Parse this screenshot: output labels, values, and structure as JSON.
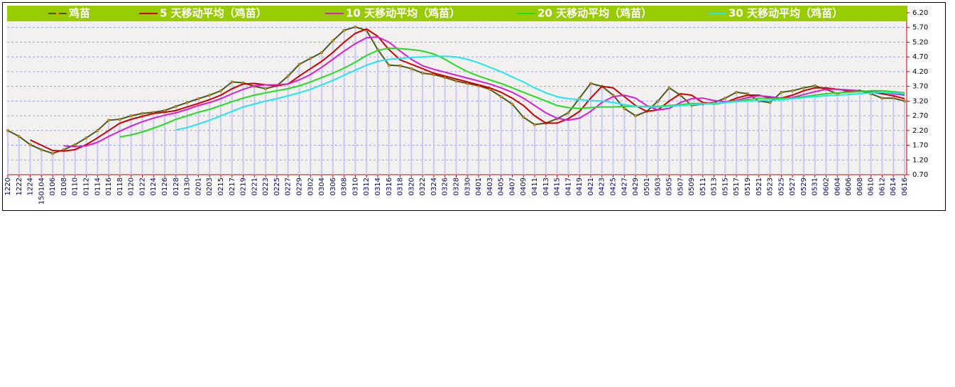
{
  "chart_data": {
    "type": "line",
    "categories": [
      "1220",
      "1222",
      "1224",
      "150104",
      "0106",
      "0108",
      "0110",
      "0112",
      "0114",
      "0116",
      "0118",
      "0120",
      "0122",
      "0124",
      "0126",
      "0128",
      "0130",
      "0201",
      "0203",
      "0215",
      "0217",
      "0219",
      "0221",
      "0223",
      "0225",
      "0227",
      "0229",
      "0302",
      "0304",
      "0306",
      "0308",
      "0310",
      "0312",
      "0314",
      "0316",
      "0318",
      "0320",
      "0322",
      "0324",
      "0326",
      "0328",
      "0330",
      "0401",
      "0403",
      "0405",
      "0407",
      "0409",
      "0411",
      "0413",
      "0415",
      "0417",
      "0419",
      "0421",
      "0423",
      "0425",
      "0427",
      "0429",
      "0501",
      "0503",
      "0505",
      "0507",
      "0509",
      "0511",
      "0513",
      "0515",
      "0517",
      "0519",
      "0521",
      "0523",
      "0525",
      "0527",
      "0529",
      "0531",
      "0602",
      "0604",
      "0606",
      "0608",
      "0610",
      "0612",
      "0614",
      "0616"
    ],
    "series": [
      {
        "name": "鸡苗",
        "color": "#4b5a1e",
        "marker_color": "#ff9900",
        "bar_color": "#c9c9f2",
        "values": [
          2.2,
          2.0,
          1.72,
          1.55,
          1.42,
          1.55,
          1.72,
          1.95,
          2.2,
          2.55,
          2.58,
          2.7,
          2.78,
          2.82,
          2.88,
          3.02,
          3.15,
          3.28,
          3.4,
          3.55,
          3.85,
          3.82,
          3.7,
          3.62,
          3.72,
          4.05,
          4.45,
          4.65,
          4.85,
          5.25,
          5.6,
          5.72,
          5.6,
          4.95,
          4.42,
          4.4,
          4.3,
          4.15,
          4.1,
          4.0,
          3.88,
          3.8,
          3.72,
          3.6,
          3.35,
          3.1,
          2.65,
          2.4,
          2.45,
          2.6,
          2.8,
          3.3,
          3.8,
          3.7,
          3.4,
          2.95,
          2.7,
          2.85,
          3.2,
          3.65,
          3.4,
          3.05,
          3.1,
          3.15,
          3.3,
          3.5,
          3.45,
          3.2,
          3.15,
          3.5,
          3.55,
          3.65,
          3.72,
          3.6,
          3.45,
          3.55,
          3.55,
          3.45,
          3.3,
          3.3,
          3.2
        ]
      },
      {
        "name": "5 天移动平均（鸡苗）",
        "color": "#cc0000",
        "values": [
          null,
          null,
          1.88,
          1.7,
          1.52,
          1.5,
          1.55,
          1.72,
          1.95,
          2.2,
          2.45,
          2.58,
          2.68,
          2.78,
          2.82,
          2.88,
          3.0,
          3.12,
          3.25,
          3.4,
          3.62,
          3.78,
          3.8,
          3.75,
          3.72,
          3.78,
          4.05,
          4.3,
          4.55,
          4.85,
          5.2,
          5.5,
          5.65,
          5.4,
          4.95,
          4.6,
          4.45,
          4.3,
          4.15,
          4.05,
          3.95,
          3.85,
          3.75,
          3.65,
          3.5,
          3.3,
          3.05,
          2.7,
          2.45,
          2.45,
          2.6,
          2.85,
          3.3,
          3.7,
          3.65,
          3.35,
          3.05,
          2.85,
          2.9,
          3.2,
          3.45,
          3.4,
          3.15,
          3.1,
          3.15,
          3.3,
          3.4,
          3.4,
          3.3,
          3.3,
          3.4,
          3.55,
          3.65,
          3.65,
          3.6,
          3.55,
          3.55,
          3.5,
          3.45,
          3.38,
          3.28
        ]
      },
      {
        "name": "10 天移动平均（鸡苗）",
        "color": "#d51fd5",
        "values": [
          null,
          null,
          null,
          null,
          null,
          1.68,
          1.65,
          1.68,
          1.8,
          2.0,
          2.18,
          2.35,
          2.5,
          2.62,
          2.72,
          2.8,
          2.92,
          3.05,
          3.15,
          3.28,
          3.45,
          3.6,
          3.72,
          3.75,
          3.75,
          3.78,
          3.92,
          4.1,
          4.35,
          4.62,
          4.9,
          5.15,
          5.35,
          5.38,
          5.2,
          4.9,
          4.62,
          4.4,
          4.28,
          4.18,
          4.08,
          3.98,
          3.88,
          3.78,
          3.65,
          3.5,
          3.3,
          3.05,
          2.8,
          2.62,
          2.55,
          2.62,
          2.85,
          3.15,
          3.35,
          3.4,
          3.3,
          3.05,
          2.9,
          2.95,
          3.15,
          3.28,
          3.3,
          3.22,
          3.18,
          3.22,
          3.32,
          3.38,
          3.35,
          3.3,
          3.32,
          3.42,
          3.52,
          3.6,
          3.6,
          3.58,
          3.55,
          3.52,
          3.5,
          3.45,
          3.4
        ]
      },
      {
        "name": "20 天移动平均（鸡苗）",
        "color": "#22dd22",
        "values": [
          null,
          null,
          null,
          null,
          null,
          null,
          null,
          null,
          null,
          null,
          1.98,
          2.05,
          2.15,
          2.28,
          2.42,
          2.58,
          2.7,
          2.82,
          2.92,
          3.05,
          3.18,
          3.3,
          3.4,
          3.48,
          3.55,
          3.62,
          3.72,
          3.85,
          4.0,
          4.15,
          4.32,
          4.52,
          4.75,
          4.92,
          5.0,
          4.98,
          4.95,
          4.9,
          4.8,
          4.62,
          4.4,
          4.2,
          4.05,
          3.92,
          3.8,
          3.65,
          3.5,
          3.35,
          3.2,
          3.05,
          2.98,
          2.95,
          2.98,
          3.0,
          3.0,
          3.02,
          3.02,
          3.02,
          3.02,
          3.05,
          3.08,
          3.12,
          3.12,
          3.1,
          3.15,
          3.2,
          3.25,
          3.3,
          3.28,
          3.28,
          3.3,
          3.35,
          3.4,
          3.45,
          3.48,
          3.5,
          3.52,
          3.55,
          3.55,
          3.52,
          3.48
        ]
      },
      {
        "name": "30 天移动平均（鸡苗）",
        "color": "#22e6ee",
        "values": [
          null,
          null,
          null,
          null,
          null,
          null,
          null,
          null,
          null,
          null,
          null,
          null,
          null,
          null,
          null,
          2.22,
          2.3,
          2.42,
          2.55,
          2.7,
          2.85,
          3.0,
          3.1,
          3.2,
          3.28,
          3.38,
          3.48,
          3.6,
          3.75,
          3.9,
          4.08,
          4.25,
          4.42,
          4.55,
          4.62,
          4.65,
          4.68,
          4.7,
          4.72,
          4.72,
          4.7,
          4.62,
          4.5,
          4.35,
          4.2,
          4.02,
          3.85,
          3.65,
          3.48,
          3.35,
          3.28,
          3.25,
          3.22,
          3.2,
          3.15,
          3.08,
          3.02,
          3.0,
          3.0,
          3.02,
          3.05,
          3.08,
          3.1,
          3.12,
          3.15,
          3.18,
          3.2,
          3.22,
          3.22,
          3.25,
          3.28,
          3.32,
          3.35,
          3.38,
          3.4,
          3.42,
          3.45,
          3.48,
          3.5,
          3.48,
          3.45
        ]
      }
    ],
    "ylim": [
      0.7,
      6.44
    ],
    "yticks": [
      {
        "value": 0.7,
        "label": "0.70"
      },
      {
        "value": 1.2,
        "label": "1.20"
      },
      {
        "value": 1.7,
        "label": "1.70"
      },
      {
        "value": 2.2,
        "label": "2.20"
      },
      {
        "value": 2.7,
        "label": "2.70"
      },
      {
        "value": 3.2,
        "label": "3.20"
      },
      {
        "value": 3.7,
        "label": "3.70"
      },
      {
        "value": 4.2,
        "label": "4.20"
      },
      {
        "value": 4.7,
        "label": "4.70"
      },
      {
        "value": 5.2,
        "label": "5.20"
      },
      {
        "value": 5.7,
        "label": "5.70"
      },
      {
        "value": 6.2,
        "label": "6.20"
      }
    ],
    "grid": true,
    "legend": "top",
    "legend_color": "#99cc00"
  }
}
